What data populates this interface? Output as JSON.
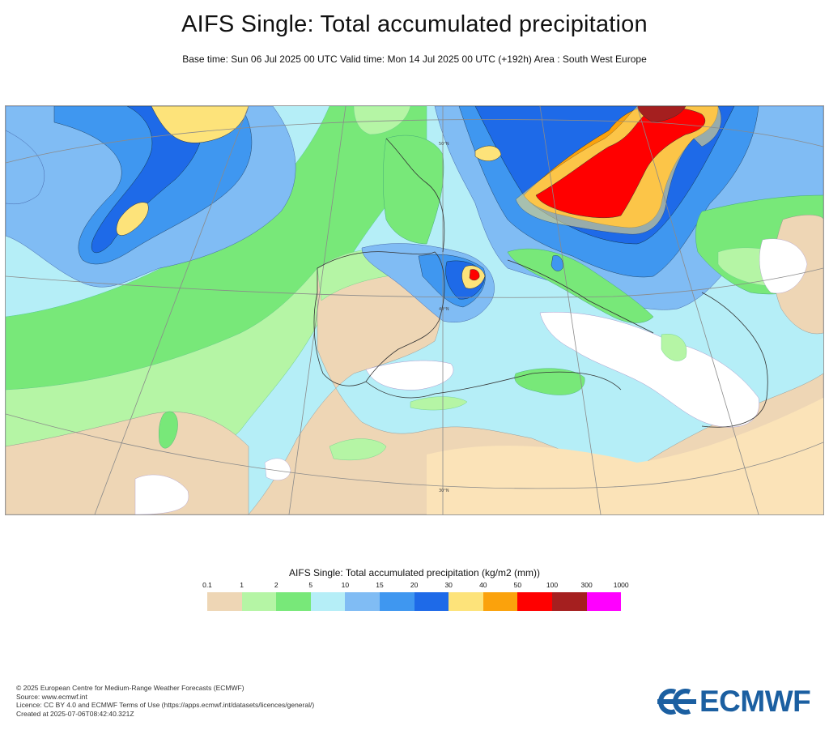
{
  "header": {
    "title": "AIFS Single: Total accumulated precipitation",
    "subtitle": "Base time: Sun 06 Jul 2025 00 UTC Valid time: Mon 14 Jul 2025 00 UTC (+192h) Area : South West Europe"
  },
  "map": {
    "area": "South West Europe",
    "graticule_labels": [
      "50°N",
      "40°N",
      "30°N"
    ],
    "palette": {
      "ocean_default": "#b5eef7",
      "land_dry": "#efdab6",
      "no_precip": "#ffffff"
    }
  },
  "legend": {
    "title": "AIFS Single: Total accumulated precipitation (kg/m2 (mm))",
    "ticks": [
      "0.1",
      "1",
      "2",
      "5",
      "10",
      "15",
      "20",
      "30",
      "40",
      "50",
      "100",
      "300",
      "1000"
    ],
    "colors": [
      "#eed6b5",
      "#b5f5a5",
      "#78e879",
      "#b5eef7",
      "#80bcf4",
      "#3f97f0",
      "#1e6ae8",
      "#fde37a",
      "#fba20c",
      "#ff0000",
      "#a51f1f",
      "#ff00ff"
    ]
  },
  "footer": {
    "lines": [
      "© 2025 European Centre for Medium-Range Weather Forecasts (ECMWF)",
      "Source: www.ecmwf.int",
      "Licence: CC BY 4.0 and ECMWF Terms of Use (https://apps.ecmwf.int/datasets/licences/general/)",
      "Created at 2025-07-06T08:42:40.321Z"
    ]
  },
  "logo": {
    "text": "ECMWF",
    "color": "#1b5fa1"
  }
}
